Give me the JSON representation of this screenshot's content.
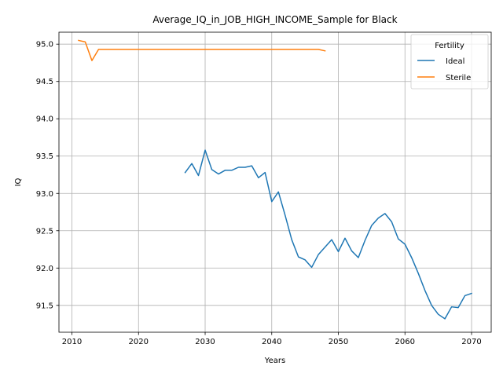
{
  "chart_data": {
    "type": "line",
    "title": "Average_IQ_in_JOB_HIGH_INCOME_Sample for Black",
    "xlabel": "Years",
    "ylabel": "IQ",
    "xlim": [
      2008.05,
      2072.95
    ],
    "ylim": [
      91.14,
      95.16
    ],
    "xticks": [
      2010,
      2020,
      2030,
      2040,
      2050,
      2060,
      2070
    ],
    "yticks": [
      91.5,
      92.0,
      92.5,
      93.0,
      93.5,
      94.0,
      94.5,
      95.0
    ],
    "xtick_labels": [
      "2010",
      "2020",
      "2030",
      "2040",
      "2050",
      "2060",
      "2070"
    ],
    "ytick_labels": [
      "91.5",
      "92.0",
      "92.5",
      "93.0",
      "93.5",
      "94.0",
      "94.5",
      "95.0"
    ],
    "grid": true,
    "legend": {
      "title": "Fertility",
      "placement": "top-right"
    },
    "series": [
      {
        "name": "Ideal",
        "color": "#1f77b4",
        "x": [
          2027,
          2028,
          2029,
          2030,
          2031,
          2032,
          2033,
          2034,
          2035,
          2036,
          2037,
          2038,
          2039,
          2040,
          2041,
          2042,
          2043,
          2044,
          2045,
          2046,
          2047,
          2048,
          2049,
          2050,
          2051,
          2052,
          2053,
          2054,
          2055,
          2056,
          2057,
          2058,
          2059,
          2060,
          2061,
          2062,
          2063,
          2064,
          2065,
          2066,
          2067,
          2068,
          2069,
          2070
        ],
        "y": [
          93.28,
          93.4,
          93.24,
          93.58,
          93.32,
          93.26,
          93.31,
          93.31,
          93.35,
          93.35,
          93.37,
          93.21,
          93.28,
          92.89,
          93.02,
          92.71,
          92.38,
          92.15,
          92.11,
          92.01,
          92.18,
          92.28,
          92.38,
          92.22,
          92.4,
          92.23,
          92.14,
          92.37,
          92.57,
          92.67,
          92.73,
          92.62,
          92.39,
          92.32,
          92.14,
          91.93,
          91.7,
          91.5,
          91.38,
          91.32,
          91.48,
          91.47,
          91.63,
          91.66
        ]
      },
      {
        "name": "Sterile",
        "color": "#ff7f0e",
        "x": [
          2011,
          2012,
          2013,
          2014,
          2015,
          2016,
          2017,
          2018,
          2019,
          2020,
          2021,
          2022,
          2023,
          2024,
          2025,
          2026,
          2027,
          2028,
          2029,
          2030,
          2031,
          2032,
          2033,
          2034,
          2035,
          2036,
          2037,
          2038,
          2039,
          2040,
          2041,
          2042,
          2043,
          2044,
          2045,
          2046,
          2047,
          2048
        ],
        "y": [
          95.05,
          95.03,
          94.78,
          94.93,
          94.93,
          94.93,
          94.93,
          94.93,
          94.93,
          94.93,
          94.93,
          94.93,
          94.93,
          94.93,
          94.93,
          94.93,
          94.93,
          94.93,
          94.93,
          94.93,
          94.93,
          94.93,
          94.93,
          94.93,
          94.93,
          94.93,
          94.93,
          94.93,
          94.93,
          94.93,
          94.93,
          94.93,
          94.93,
          94.93,
          94.93,
          94.93,
          94.93,
          94.91
        ]
      }
    ]
  }
}
